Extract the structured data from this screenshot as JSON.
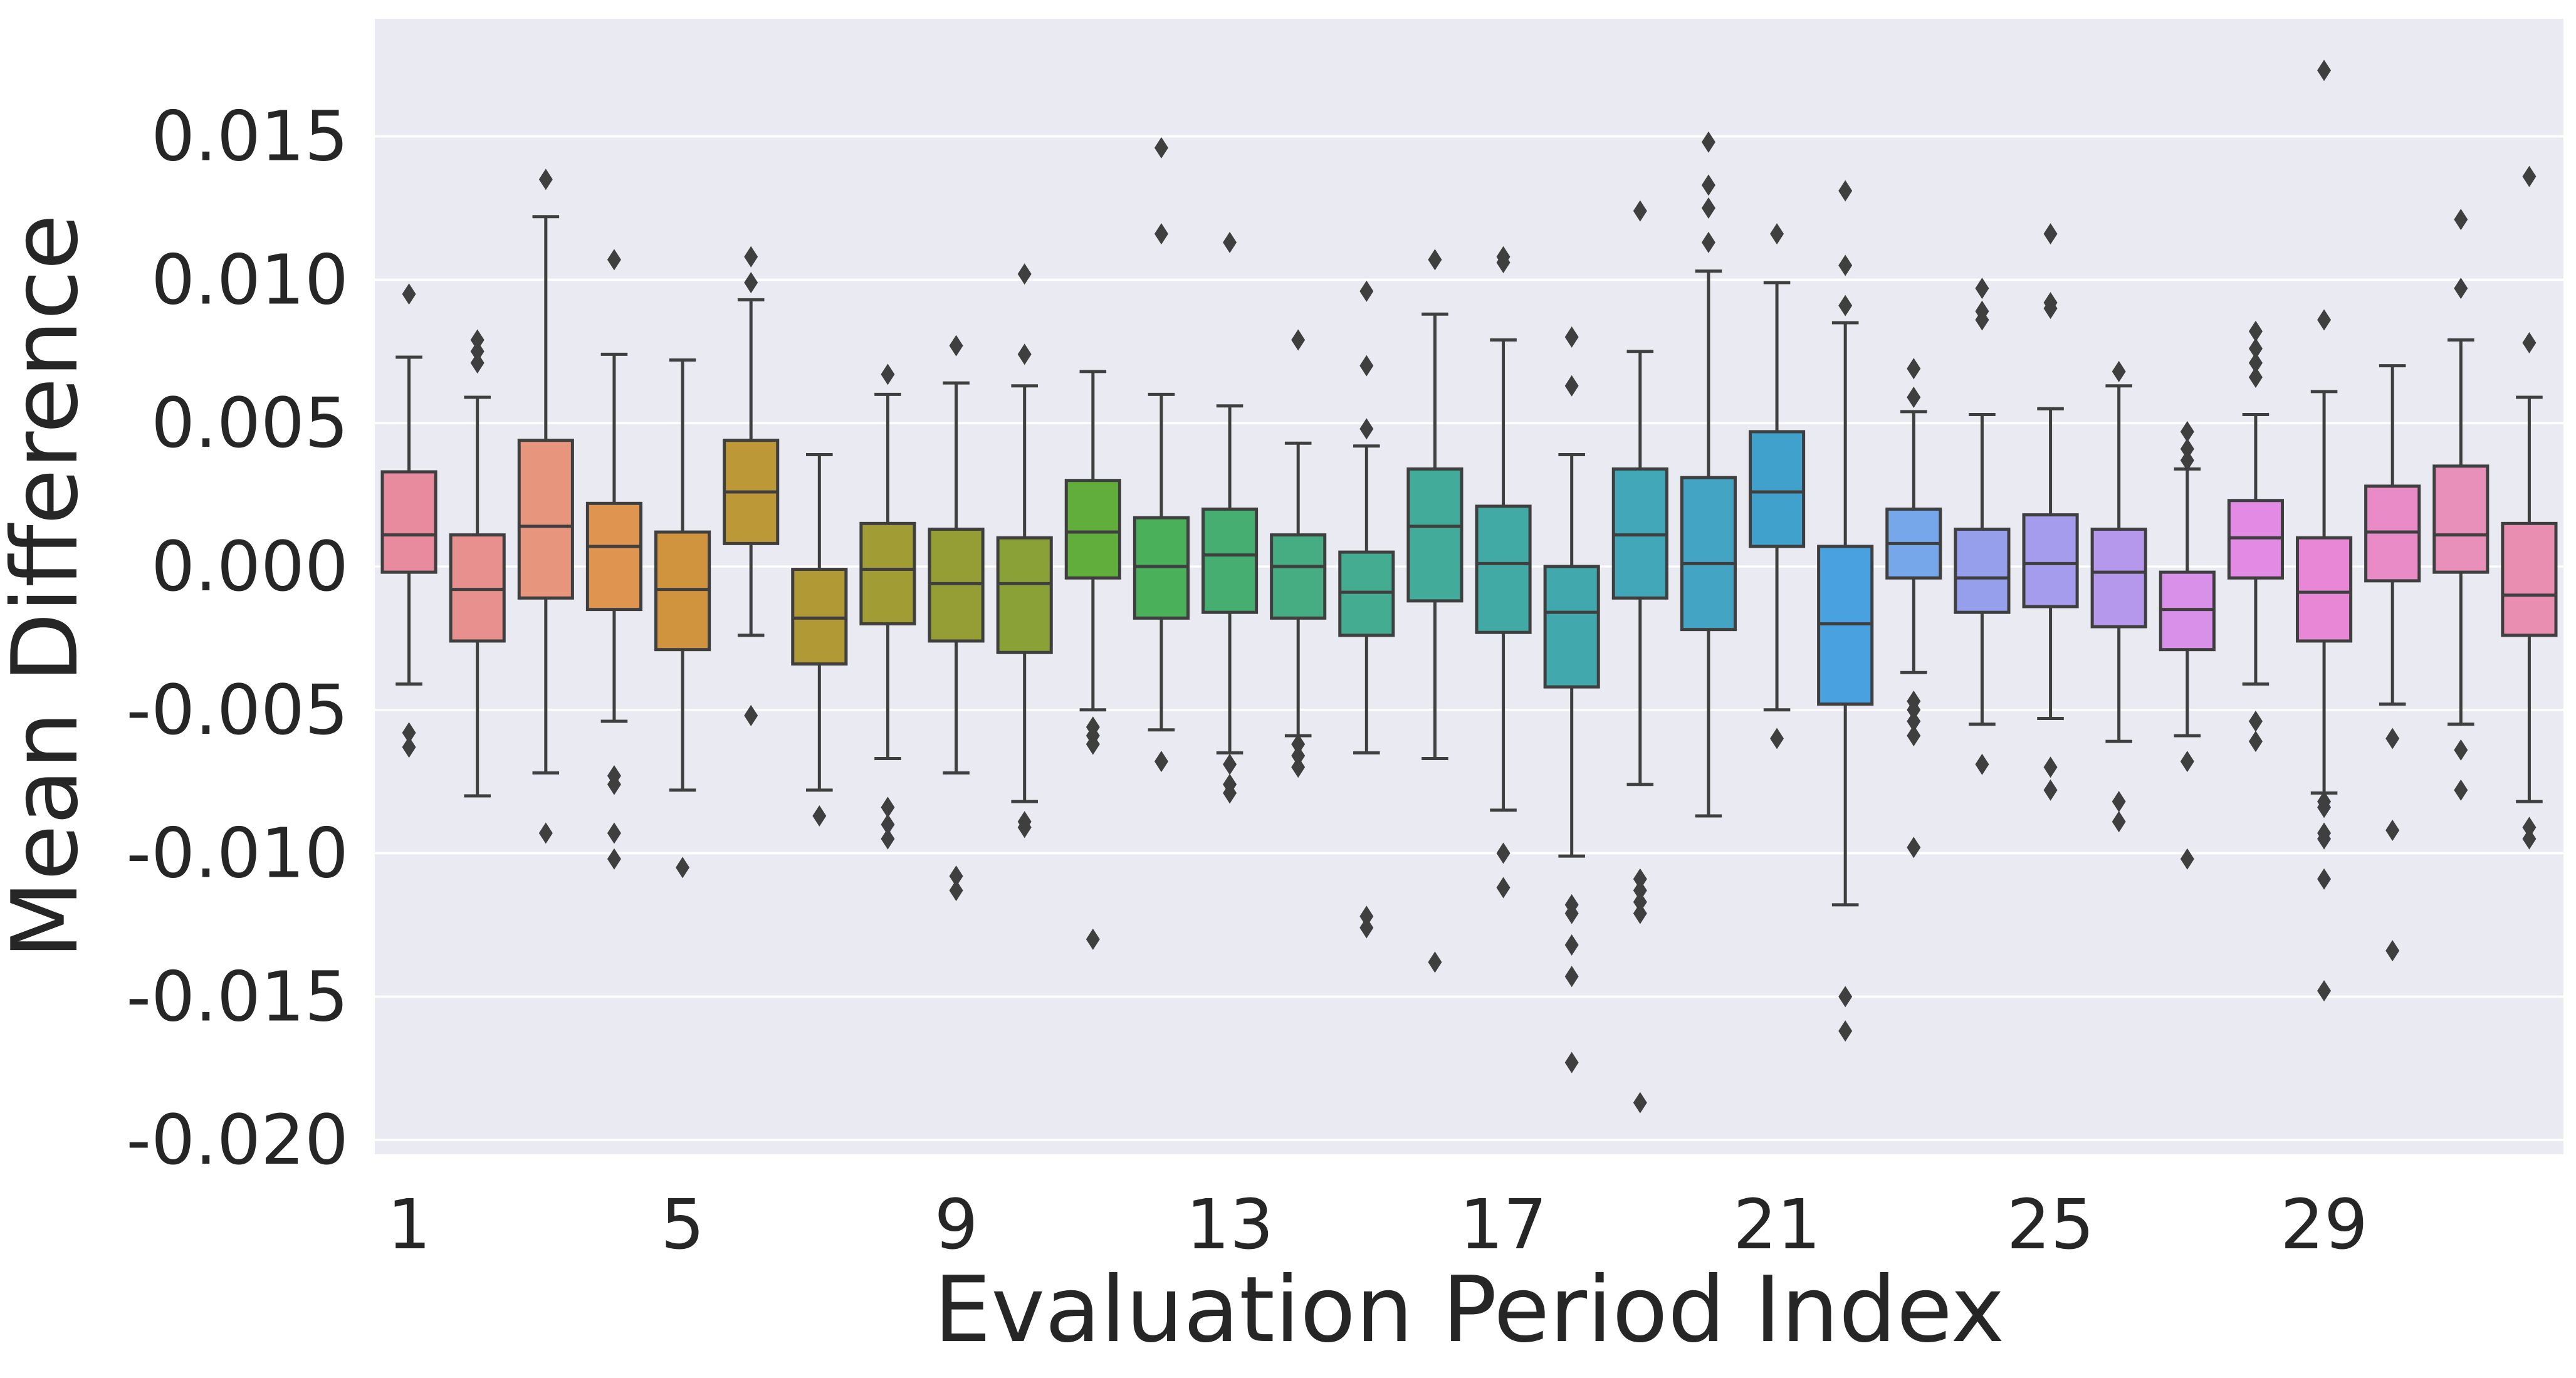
{
  "chart_data": {
    "type": "box",
    "title": "",
    "xlabel": "Evaluation Period Index",
    "ylabel": "Mean Difference",
    "ylim": [
      -0.0205,
      0.0191
    ],
    "y_ticks": [
      "0.015",
      "0.010",
      "0.005",
      "0.000",
      "-0.005",
      "-0.010",
      "-0.015",
      "-0.020"
    ],
    "y_tick_values": [
      0.015,
      0.01,
      0.005,
      0.0,
      -0.005,
      -0.01,
      -0.015,
      -0.02
    ],
    "x_tick_labels": [
      "1",
      "5",
      "9",
      "13",
      "17",
      "21",
      "25",
      "29"
    ],
    "x_tick_indices": [
      1,
      5,
      9,
      13,
      17,
      21,
      25,
      29
    ],
    "colors": {
      "background": "#EAEAF2",
      "grid": "#FFFFFF",
      "edge": "#3F3F3F",
      "boxes": [
        "#E98B9E",
        "#E8908D",
        "#E7957D",
        "#DF944F",
        "#D0943F",
        "#BD9837",
        "#B19A36",
        "#A29C35",
        "#959E34",
        "#8AA137",
        "#62AE3D",
        "#4AB059",
        "#47AE72",
        "#45AD81",
        "#44AC90",
        "#43AB99",
        "#42AAA4",
        "#41A9AE",
        "#42A7B8",
        "#44A4C4",
        "#40A1CD",
        "#4AA1E0",
        "#75A7EA",
        "#959FEC",
        "#A59CED",
        "#B598EC",
        "#D890E8",
        "#E38BE4",
        "#E887D6",
        "#E88BC7",
        "#E88FBA",
        "#E98EB0"
      ]
    },
    "series": [
      {
        "period": 1,
        "q1": -0.0002,
        "median": 0.0011,
        "q3": 0.0033,
        "whisker_low": -0.0041,
        "whisker_high": 0.0073,
        "outliers": [
          0.0095,
          -0.0058,
          -0.0063
        ]
      },
      {
        "period": 2,
        "q1": -0.0026,
        "median": -0.0008,
        "q3": 0.0011,
        "whisker_low": -0.008,
        "whisker_high": 0.0059,
        "outliers": [
          0.0079,
          0.0075,
          0.0071
        ]
      },
      {
        "period": 3,
        "q1": -0.0011,
        "median": 0.0014,
        "q3": 0.0044,
        "whisker_low": -0.0072,
        "whisker_high": 0.0122,
        "outliers": [
          0.0135,
          -0.0093
        ]
      },
      {
        "period": 4,
        "q1": -0.0015,
        "median": 0.0007,
        "q3": 0.0022,
        "whisker_low": -0.0054,
        "whisker_high": 0.0074,
        "outliers": [
          0.0107,
          -0.0073,
          -0.0076,
          -0.0093,
          -0.0102
        ]
      },
      {
        "period": 5,
        "q1": -0.0029,
        "median": -0.0008,
        "q3": 0.0012,
        "whisker_low": -0.0078,
        "whisker_high": 0.0072,
        "outliers": [
          -0.0105
        ]
      },
      {
        "period": 6,
        "q1": 0.0008,
        "median": 0.0026,
        "q3": 0.0044,
        "whisker_low": -0.0024,
        "whisker_high": 0.0093,
        "outliers": [
          0.0108,
          0.0099,
          -0.0052
        ]
      },
      {
        "period": 7,
        "q1": -0.0034,
        "median": -0.0018,
        "q3": -0.0001,
        "whisker_low": -0.0078,
        "whisker_high": 0.0039,
        "outliers": [
          -0.0087
        ]
      },
      {
        "period": 8,
        "q1": -0.002,
        "median": -0.0001,
        "q3": 0.0015,
        "whisker_low": -0.0067,
        "whisker_high": 0.006,
        "outliers": [
          0.0067,
          -0.0084,
          -0.009,
          -0.0095
        ]
      },
      {
        "period": 9,
        "q1": -0.0026,
        "median": -0.0006,
        "q3": 0.0013,
        "whisker_low": -0.0072,
        "whisker_high": 0.0064,
        "outliers": [
          0.0077,
          -0.0108,
          -0.0113
        ]
      },
      {
        "period": 10,
        "q1": -0.003,
        "median": -0.0006,
        "q3": 0.001,
        "whisker_low": -0.0082,
        "whisker_high": 0.0063,
        "outliers": [
          0.0102,
          0.0074,
          -0.0089,
          -0.0091
        ]
      },
      {
        "period": 11,
        "q1": -0.0004,
        "median": 0.0012,
        "q3": 0.003,
        "whisker_low": -0.005,
        "whisker_high": 0.0068,
        "outliers": [
          -0.0056,
          -0.0059,
          -0.0062,
          -0.013
        ]
      },
      {
        "period": 12,
        "q1": -0.0018,
        "median": 0.0,
        "q3": 0.0017,
        "whisker_low": -0.0057,
        "whisker_high": 0.006,
        "outliers": [
          0.0146,
          0.0116,
          -0.0068
        ]
      },
      {
        "period": 13,
        "q1": -0.0016,
        "median": 0.0004,
        "q3": 0.002,
        "whisker_low": -0.0065,
        "whisker_high": 0.0056,
        "outliers": [
          0.0113,
          -0.0069,
          -0.0076,
          -0.0079
        ]
      },
      {
        "period": 14,
        "q1": -0.0018,
        "median": 0.0,
        "q3": 0.0011,
        "whisker_low": -0.0059,
        "whisker_high": 0.0043,
        "outliers": [
          0.0079,
          -0.0062,
          -0.0066,
          -0.007
        ]
      },
      {
        "period": 15,
        "q1": -0.0024,
        "median": -0.0009,
        "q3": 0.0005,
        "whisker_low": -0.0065,
        "whisker_high": 0.0042,
        "outliers": [
          0.0096,
          0.007,
          0.0048,
          -0.0122,
          -0.0126
        ]
      },
      {
        "period": 16,
        "q1": -0.0012,
        "median": 0.0014,
        "q3": 0.0034,
        "whisker_low": -0.0067,
        "whisker_high": 0.0088,
        "outliers": [
          0.0107,
          -0.0138
        ]
      },
      {
        "period": 17,
        "q1": -0.0023,
        "median": 0.0001,
        "q3": 0.0021,
        "whisker_low": -0.0085,
        "whisker_high": 0.0079,
        "outliers": [
          0.0108,
          0.0106,
          -0.01,
          -0.0112
        ]
      },
      {
        "period": 18,
        "q1": -0.0042,
        "median": -0.0016,
        "q3": 0.0,
        "whisker_low": -0.0101,
        "whisker_high": 0.0039,
        "outliers": [
          0.008,
          0.0063,
          -0.0118,
          -0.0121,
          -0.0132,
          -0.0143,
          -0.0173
        ]
      },
      {
        "period": 19,
        "q1": -0.0011,
        "median": 0.0011,
        "q3": 0.0034,
        "whisker_low": -0.0076,
        "whisker_high": 0.0075,
        "outliers": [
          0.0124,
          -0.0109,
          -0.0113,
          -0.0117,
          -0.0121,
          -0.0187
        ]
      },
      {
        "period": 20,
        "q1": -0.0022,
        "median": 0.0001,
        "q3": 0.0031,
        "whisker_low": -0.0087,
        "whisker_high": 0.0103,
        "outliers": [
          0.0148,
          0.0133,
          0.0125,
          0.0113
        ]
      },
      {
        "period": 21,
        "q1": 0.0007,
        "median": 0.0026,
        "q3": 0.0047,
        "whisker_low": -0.005,
        "whisker_high": 0.0099,
        "outliers": [
          0.0116,
          -0.006
        ]
      },
      {
        "period": 22,
        "q1": -0.0048,
        "median": -0.002,
        "q3": 0.0007,
        "whisker_low": -0.0118,
        "whisker_high": 0.0085,
        "outliers": [
          0.0131,
          0.0105,
          0.0091,
          -0.015,
          -0.0162
        ]
      },
      {
        "period": 23,
        "q1": -0.0004,
        "median": 0.0008,
        "q3": 0.002,
        "whisker_low": -0.0037,
        "whisker_high": 0.0054,
        "outliers": [
          0.0069,
          0.0059,
          -0.0047,
          -0.005,
          -0.0054,
          -0.0059,
          -0.0098
        ]
      },
      {
        "period": 24,
        "q1": -0.0016,
        "median": -0.0004,
        "q3": 0.0013,
        "whisker_low": -0.0055,
        "whisker_high": 0.0053,
        "outliers": [
          0.0097,
          0.0089,
          0.0086,
          -0.0069
        ]
      },
      {
        "period": 25,
        "q1": -0.0014,
        "median": 0.0001,
        "q3": 0.0018,
        "whisker_low": -0.0053,
        "whisker_high": 0.0055,
        "outliers": [
          0.0116,
          0.0092,
          0.009,
          -0.007,
          -0.0078
        ]
      },
      {
        "period": 26,
        "q1": -0.0021,
        "median": -0.0002,
        "q3": 0.0013,
        "whisker_low": -0.0061,
        "whisker_high": 0.0063,
        "outliers": [
          0.0068,
          -0.0082,
          -0.0089
        ]
      },
      {
        "period": 27,
        "q1": -0.0029,
        "median": -0.0015,
        "q3": -0.0002,
        "whisker_low": -0.0059,
        "whisker_high": 0.0034,
        "outliers": [
          0.0047,
          0.0041,
          0.0037,
          -0.0068,
          -0.0102
        ]
      },
      {
        "period": 28,
        "q1": -0.0004,
        "median": 0.001,
        "q3": 0.0023,
        "whisker_low": -0.0041,
        "whisker_high": 0.0053,
        "outliers": [
          0.0082,
          0.0076,
          0.0071,
          0.0066,
          -0.0054,
          -0.0061
        ]
      },
      {
        "period": 29,
        "q1": -0.0026,
        "median": -0.0009,
        "q3": 0.001,
        "whisker_low": -0.0079,
        "whisker_high": 0.0061,
        "outliers": [
          0.0173,
          0.0086,
          -0.0082,
          -0.0084,
          -0.0093,
          -0.0095,
          -0.0109,
          -0.0148
        ]
      },
      {
        "period": 30,
        "q1": -0.0005,
        "median": 0.0012,
        "q3": 0.0028,
        "whisker_low": -0.0048,
        "whisker_high": 0.007,
        "outliers": [
          -0.006,
          -0.0092,
          -0.0134
        ]
      },
      {
        "period": 31,
        "q1": -0.0002,
        "median": 0.0011,
        "q3": 0.0035,
        "whisker_low": -0.0055,
        "whisker_high": 0.0079,
        "outliers": [
          0.0121,
          0.0097,
          -0.0064,
          -0.0078
        ]
      },
      {
        "period": 32,
        "q1": -0.0024,
        "median": -0.001,
        "q3": 0.0015,
        "whisker_low": -0.0082,
        "whisker_high": 0.0059,
        "outliers": [
          0.0136,
          0.0078,
          -0.0091,
          -0.0095
        ]
      }
    ]
  }
}
